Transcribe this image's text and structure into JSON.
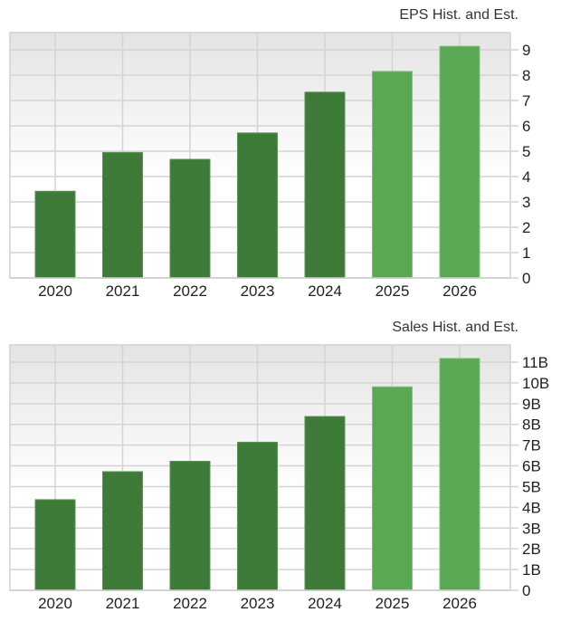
{
  "colors": {
    "historical_bar": "#3e7a38",
    "estimate_bar": "#5aa853",
    "grid": "#d4d4d4",
    "border": "#d0d0d0",
    "bg_top": "#e4e4e4",
    "bg_bottom": "#ffffff",
    "text": "#222222",
    "title_text": "#333333"
  },
  "chart_data": [
    {
      "type": "bar",
      "title": "EPS Hist. and Est.",
      "xlabel": "",
      "ylabel": "",
      "categories": [
        "2020",
        "2021",
        "2022",
        "2023",
        "2024",
        "2025",
        "2026"
      ],
      "values": [
        3.42,
        4.95,
        4.68,
        5.72,
        7.33,
        8.15,
        9.14
      ],
      "estimate": [
        false,
        false,
        false,
        false,
        false,
        true,
        true
      ],
      "ylim": [
        0,
        9.68
      ],
      "yticks": [
        0,
        1,
        2,
        3,
        4,
        5,
        6,
        7,
        8,
        9
      ],
      "ytick_labels": [
        "0",
        "1",
        "2",
        "3",
        "4",
        "5",
        "6",
        "7",
        "8",
        "9"
      ],
      "y_axis_position": "right",
      "grid": true,
      "legend": null
    },
    {
      "type": "bar",
      "title": "Sales Hist. and Est.",
      "xlabel": "",
      "ylabel": "",
      "categories": [
        "2020",
        "2021",
        "2022",
        "2023",
        "2024",
        "2025",
        "2026"
      ],
      "values": [
        4370000000,
        5720000000,
        6220000000,
        7140000000,
        8380000000,
        9810000000,
        11180000000
      ],
      "values_billions": [
        4.37,
        5.72,
        6.22,
        7.14,
        8.38,
        9.81,
        11.18
      ],
      "estimate": [
        false,
        false,
        false,
        false,
        false,
        true,
        true
      ],
      "ylim": [
        0,
        11.83
      ],
      "yticks": [
        0,
        1,
        2,
        3,
        4,
        5,
        6,
        7,
        8,
        9,
        10,
        11
      ],
      "ytick_labels": [
        "0",
        "1B",
        "2B",
        "3B",
        "4B",
        "5B",
        "6B",
        "7B",
        "8B",
        "9B",
        "10B",
        "11B"
      ],
      "y_axis_position": "right",
      "grid": true,
      "legend": null
    }
  ]
}
